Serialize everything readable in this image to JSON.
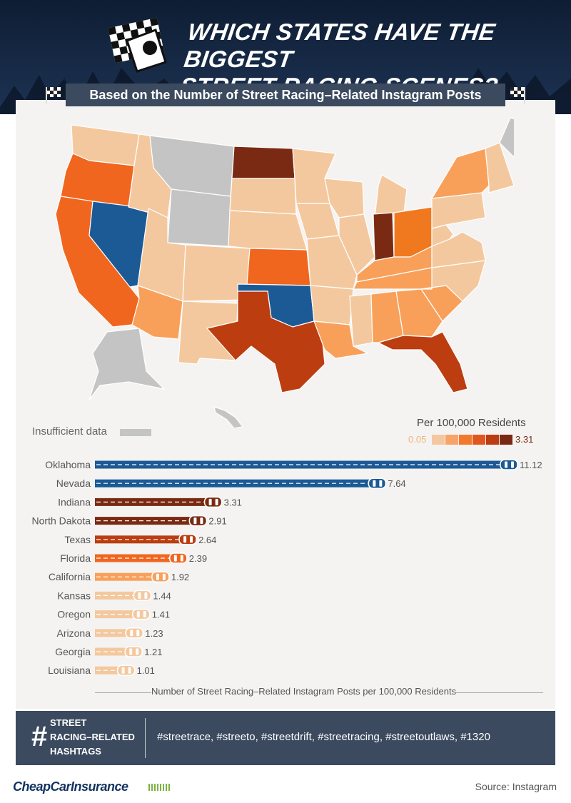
{
  "header": {
    "title_line1": "Which States Have The Biggest",
    "title_line2": "Street Racing Scenes?",
    "subtitle": "Based on the Number of Street Racing–Related Instagram Posts"
  },
  "legend": {
    "title": "Per 100,000 Residents",
    "min": "0.05",
    "max": "3.31",
    "colors": [
      "#f4c89e",
      "#f8a36a",
      "#f2792c",
      "#e1561f",
      "#bc3d10",
      "#7a2a12"
    ],
    "insufficient_label": "Insufficient data",
    "insufficient_color": "#c4c4c4"
  },
  "map": {
    "states": [
      {
        "name": "Washington",
        "color": "#f4c89e"
      },
      {
        "name": "Oregon",
        "color": "#f0661f"
      },
      {
        "name": "California",
        "color": "#f0661f"
      },
      {
        "name": "Nevada",
        "color": "#1c5a96"
      },
      {
        "name": "Idaho",
        "color": "#f4c89e"
      },
      {
        "name": "Montana",
        "color": "#c4c4c4"
      },
      {
        "name": "Wyoming",
        "color": "#c4c4c4"
      },
      {
        "name": "Utah",
        "color": "#f4c89e"
      },
      {
        "name": "Arizona",
        "color": "#f8a05a"
      },
      {
        "name": "Colorado",
        "color": "#f4c89e"
      },
      {
        "name": "New Mexico",
        "color": "#f4c89e"
      },
      {
        "name": "North Dakota",
        "color": "#7a2a12"
      },
      {
        "name": "South Dakota",
        "color": "#f4c89e"
      },
      {
        "name": "Nebraska",
        "color": "#f4c89e"
      },
      {
        "name": "Kansas",
        "color": "#f0661f"
      },
      {
        "name": "Oklahoma",
        "color": "#1c5a96"
      },
      {
        "name": "Texas",
        "color": "#bc3d10"
      },
      {
        "name": "Minnesota",
        "color": "#f4c89e"
      },
      {
        "name": "Iowa",
        "color": "#f4c89e"
      },
      {
        "name": "Missouri",
        "color": "#f4c89e"
      },
      {
        "name": "Arkansas",
        "color": "#f4c89e"
      },
      {
        "name": "Louisiana",
        "color": "#f8a05a"
      },
      {
        "name": "Wisconsin",
        "color": "#f4c89e"
      },
      {
        "name": "Illinois",
        "color": "#f4c89e"
      },
      {
        "name": "Michigan",
        "color": "#f4c89e"
      },
      {
        "name": "Indiana",
        "color": "#7a2a12"
      },
      {
        "name": "Ohio",
        "color": "#f0791f"
      },
      {
        "name": "Kentucky",
        "color": "#f8a05a"
      },
      {
        "name": "Tennessee",
        "color": "#f8a05a"
      },
      {
        "name": "Mississippi",
        "color": "#f4c89e"
      },
      {
        "name": "Alabama",
        "color": "#f8a05a"
      },
      {
        "name": "Georgia",
        "color": "#f8a05a"
      },
      {
        "name": "Florida",
        "color": "#bc3d10"
      },
      {
        "name": "South Carolina",
        "color": "#f8a05a"
      },
      {
        "name": "North Carolina",
        "color": "#f4c89e"
      },
      {
        "name": "Virginia",
        "color": "#f4c89e"
      },
      {
        "name": "West Virginia",
        "color": "#f4c89e"
      },
      {
        "name": "Pennsylvania",
        "color": "#f4c89e"
      },
      {
        "name": "New York",
        "color": "#f8a05a"
      },
      {
        "name": "Maine",
        "color": "#c4c4c4"
      },
      {
        "name": "Alaska",
        "color": "#c4c4c4"
      },
      {
        "name": "Hawaii",
        "color": "#c4c4c4"
      }
    ]
  },
  "chart_data": {
    "type": "bar",
    "orientation": "horizontal",
    "categories": [
      "Oklahoma",
      "Nevada",
      "Indiana",
      "North Dakota",
      "Texas",
      "Florida",
      "California",
      "Kansas",
      "Oregon",
      "Arizona",
      "Georgia",
      "Louisiana"
    ],
    "values": [
      11.12,
      7.64,
      3.31,
      2.91,
      2.64,
      2.39,
      1.92,
      1.44,
      1.41,
      1.23,
      1.21,
      1.01
    ],
    "value_labels": [
      "11.12",
      "7.64",
      "3.31",
      "2.91",
      "2.64",
      "2.39",
      "1.92",
      "1.44",
      "1.41",
      "1.23",
      "1.21",
      "1.01"
    ],
    "bar_colors": [
      "#1c5a96",
      "#1c5a96",
      "#7a2a12",
      "#7a2a12",
      "#bc3d10",
      "#f0661f",
      "#f8a05a",
      "#f4c89e",
      "#f4c89e",
      "#f4c89e",
      "#f4c89e",
      "#f4c89e"
    ],
    "xlabel": "Number of Street Racing–Related Instagram Posts per 100,000 Residents",
    "xlim": [
      0,
      11.12
    ]
  },
  "hashtags": {
    "symbol": "#",
    "label_line1": "STREET",
    "label_line2": "RACING–RELATED",
    "label_line3": "HASHTAGS",
    "list": "#streetrace, #streeto, #streetdrift, #streetracing, #streetoutlaws, #1320"
  },
  "footer": {
    "brand": "CheapCarInsurance",
    "source": "Source: Instagram"
  }
}
